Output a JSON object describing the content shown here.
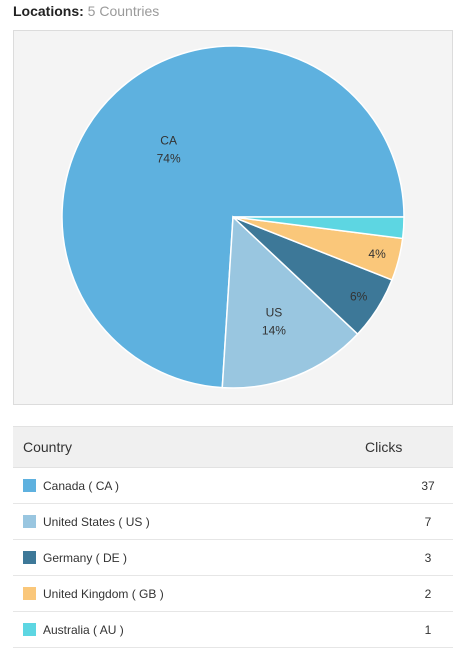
{
  "header": {
    "label": "Locations:",
    "count": "5 Countries"
  },
  "chart_data": {
    "type": "pie",
    "slices": [
      {
        "label": "CA",
        "percent_label": "74%",
        "value": 37,
        "color": "#5eb1df"
      },
      {
        "label": "US",
        "percent_label": "14%",
        "value": 7,
        "color": "#99c6e0"
      },
      {
        "label": "",
        "percent_label": "6%",
        "value": 3,
        "color": "#3d7898"
      },
      {
        "label": "",
        "percent_label": "4%",
        "value": 2,
        "color": "#fac77a"
      },
      {
        "label": "",
        "percent_label": "",
        "value": 1,
        "color": "#5dd6e2"
      }
    ]
  },
  "table": {
    "headers": {
      "country": "Country",
      "clicks": "Clicks"
    },
    "rows": [
      {
        "country": "Canada ( CA )",
        "clicks": "37",
        "color": "#5eb1df"
      },
      {
        "country": "United States ( US )",
        "clicks": "7",
        "color": "#99c6e0"
      },
      {
        "country": "Germany ( DE )",
        "clicks": "3",
        "color": "#3d7898"
      },
      {
        "country": "United Kingdom ( GB )",
        "clicks": "2",
        "color": "#fac77a"
      },
      {
        "country": "Australia ( AU )",
        "clicks": "1",
        "color": "#5dd6e2"
      }
    ]
  }
}
